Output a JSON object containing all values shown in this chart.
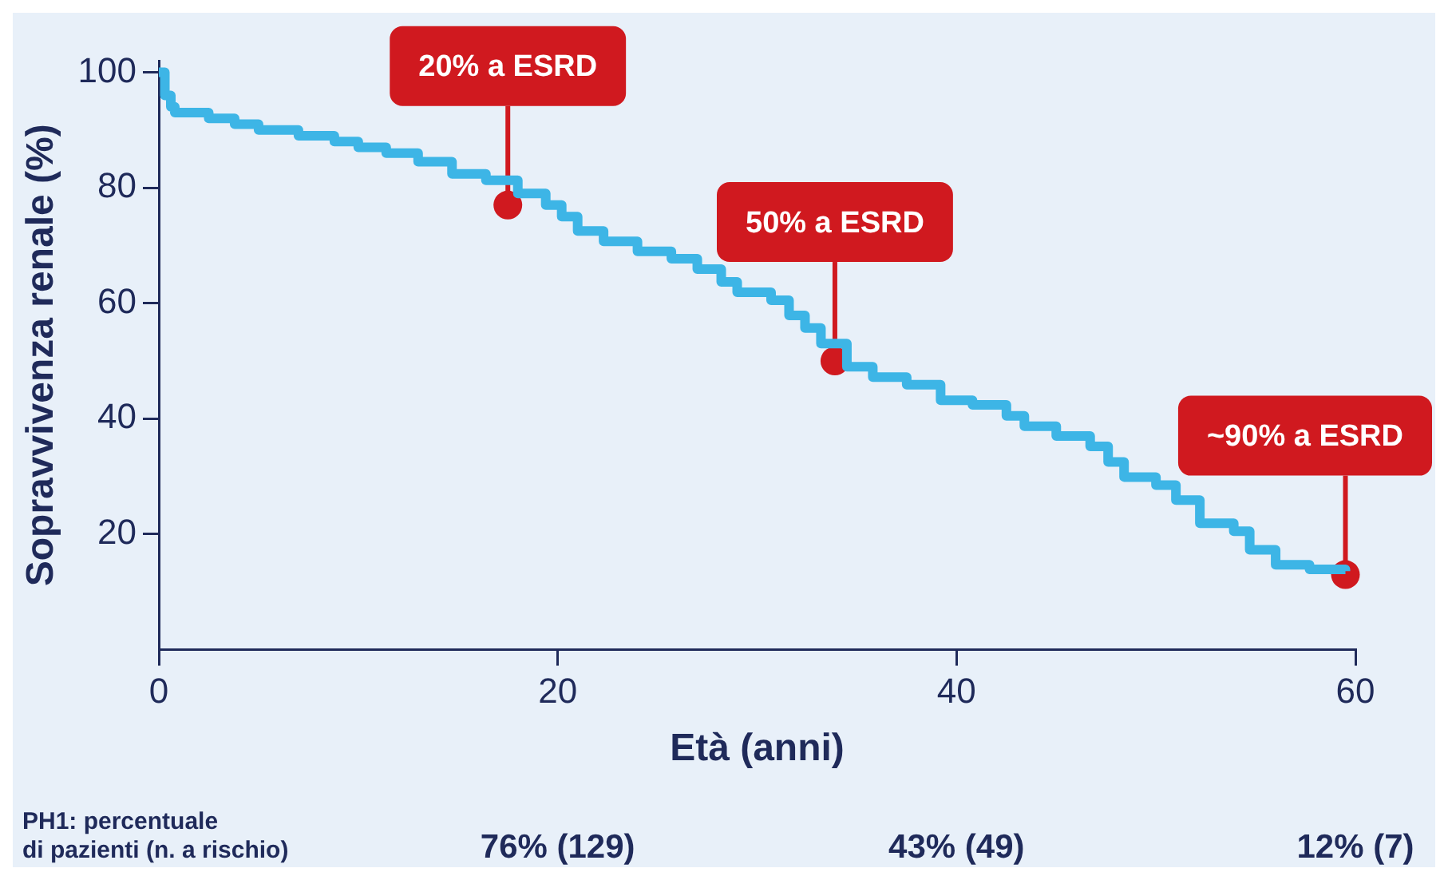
{
  "chart_data": {
    "type": "step",
    "xlabel": "Età (anni)",
    "ylabel": "Sopravvivenza renale (%)",
    "xlim": [
      0,
      60
    ],
    "ylim": [
      0,
      102
    ],
    "xticks": [
      0,
      20,
      40,
      60
    ],
    "yticks": [
      20,
      40,
      60,
      80,
      100
    ],
    "grid": false,
    "legend": false,
    "marker": "none",
    "series": [
      {
        "color": "#3db5e6",
        "x": [
          0,
          0.3,
          0.6,
          0.8,
          2.5,
          3.8,
          5,
          7,
          8.8,
          10,
          11.4,
          13,
          14.7,
          16.4,
          18,
          19.4,
          20.2,
          21,
          22.3,
          24,
          25.7,
          27,
          28.2,
          29,
          30.7,
          31.6,
          32.4,
          33.2,
          34.5,
          35.8,
          37.5,
          39.2,
          40.8,
          42.5,
          43.4,
          45,
          46.7,
          47.6,
          48.4,
          50,
          51,
          52.2,
          53.9,
          54.7,
          56,
          57.7,
          59.5
        ],
        "values": [
          100,
          96,
          94,
          93,
          92,
          91,
          90,
          89,
          88,
          87,
          86,
          84.5,
          82.4,
          81.3,
          79,
          77,
          75,
          72.5,
          70.7,
          69,
          67.7,
          65.9,
          63.7,
          61.9,
          60.5,
          57.9,
          55.7,
          53,
          49,
          47.2,
          45.9,
          43.2,
          42.4,
          40.5,
          38.7,
          37,
          35.2,
          32.5,
          29.9,
          28.5,
          25.9,
          21.9,
          20.5,
          17.3,
          14.7,
          13.9,
          13.6
        ]
      }
    ],
    "annotations": [
      {
        "text": "20% a ESRD",
        "x": 17.5,
        "y": 77
      },
      {
        "text": "50% a ESRD",
        "x": 33.9,
        "y": 50
      },
      {
        "text": "~90% a ESRD",
        "x": 59.5,
        "y": 13
      },
      "PH1: percentuale\ndi pazienti (n. a rischio)",
      "76% (129)",
      "43% (49)",
      "12% (7)"
    ]
  }
}
